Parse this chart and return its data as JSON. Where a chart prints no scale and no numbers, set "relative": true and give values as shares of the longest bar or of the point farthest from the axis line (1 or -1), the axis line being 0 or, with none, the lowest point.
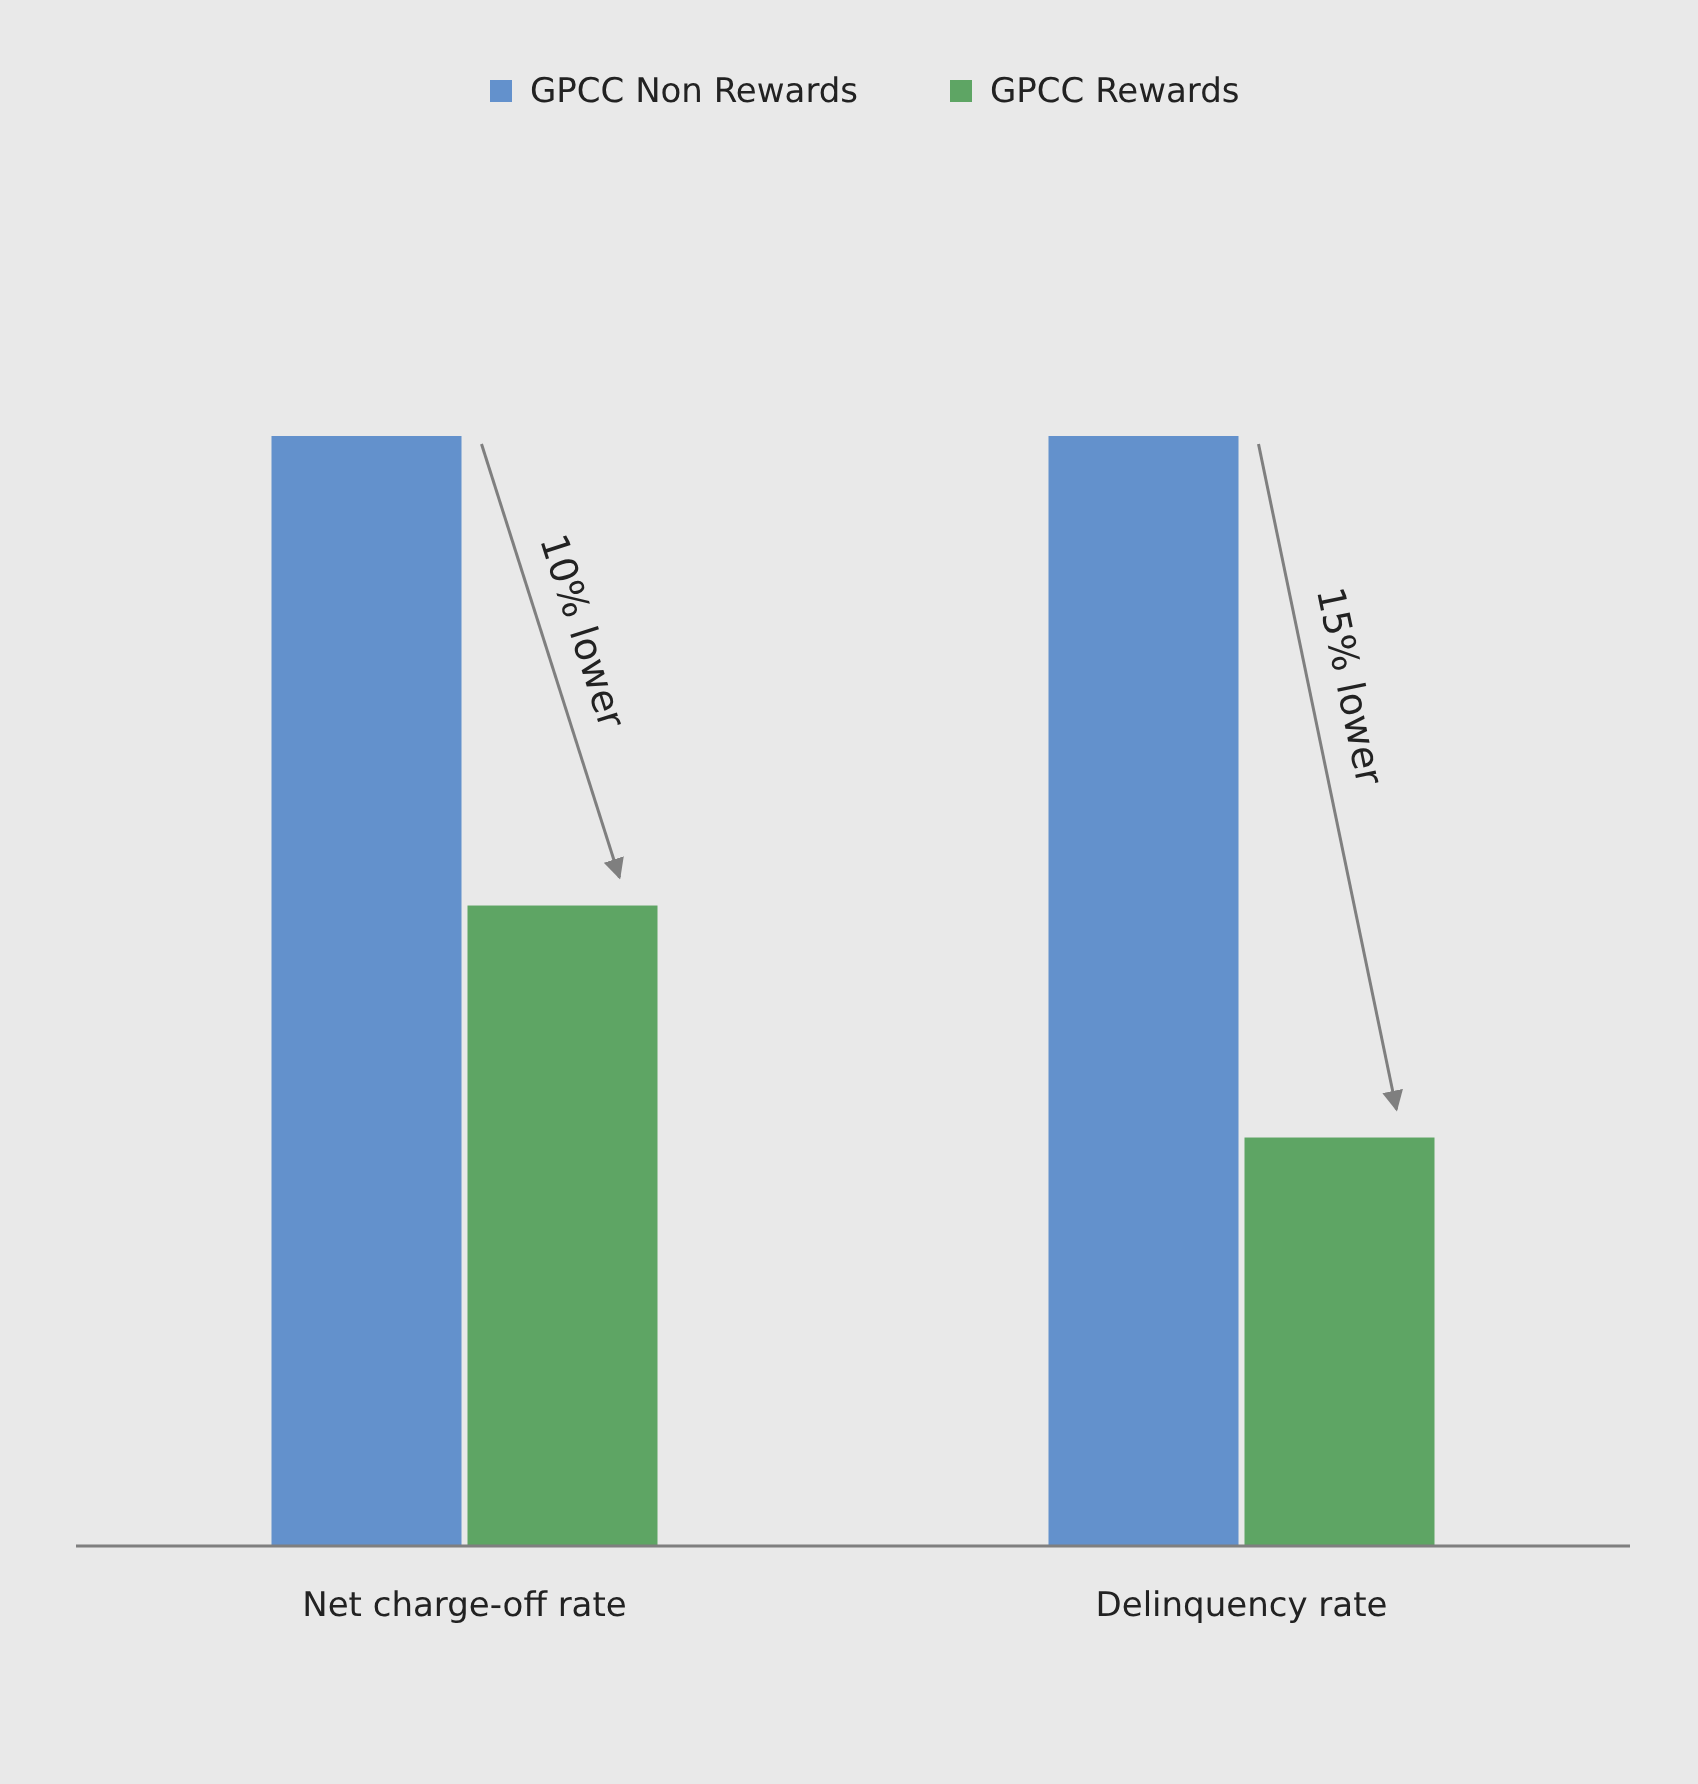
{
  "chart_data": {
    "type": "bar",
    "relative": true,
    "categories": [
      "Net charge-off rate",
      "Delinquency rate"
    ],
    "series": [
      {
        "name": "GPCC Non Rewards",
        "color": "#6391cc",
        "values": [
          1,
          1
        ]
      },
      {
        "name": "GPCC Rewards",
        "color": "#5ea564",
        "values": [
          0.577,
          0.368
        ]
      }
    ],
    "legend": "top",
    "grid": false,
    "annotations": [
      {
        "text": "10% lower",
        "x": "Net charge-off rate"
      },
      {
        "text": "15% lower",
        "x": "Delinquency rate"
      }
    ]
  }
}
